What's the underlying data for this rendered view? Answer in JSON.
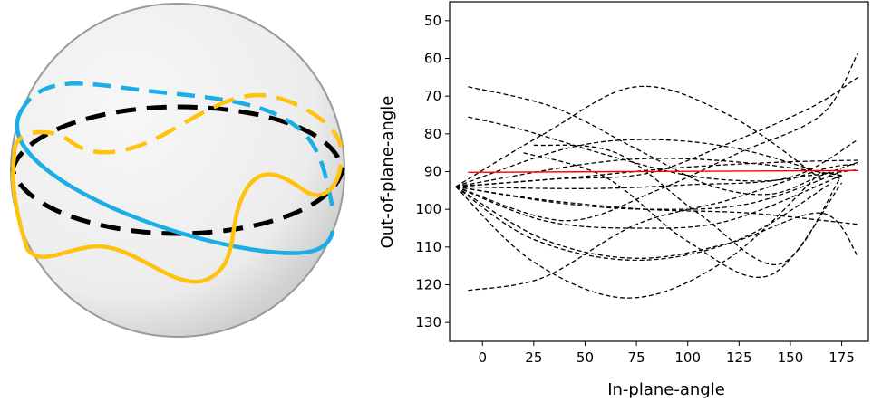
{
  "chart_data": [
    {
      "type": "sphere-illustration",
      "curves": [
        {
          "color": "#000000",
          "style": "dashed"
        },
        {
          "color": "#1aade6",
          "style": "solid/dashed"
        },
        {
          "color": "#ffc20e",
          "style": "solid/dashed"
        }
      ]
    },
    {
      "type": "line",
      "xlabel": "In-plane-angle",
      "ylabel": "Out-of-plane-angle",
      "xlim": [
        -16,
        188
      ],
      "ylim": [
        135,
        45
      ],
      "y_inverted": true,
      "xticks": [
        0,
        25,
        50,
        75,
        100,
        125,
        150,
        175
      ],
      "yticks": [
        50,
        60,
        70,
        80,
        90,
        100,
        110,
        120,
        130
      ],
      "grid": false,
      "reference_line": {
        "color": "#ff0000",
        "points": [
          [
            -7,
            90.2
          ],
          [
            183,
            89.7
          ]
        ]
      },
      "series_color": "#000000",
      "series_style": "dashed",
      "series": [
        {
          "x": [
            -7,
            35,
            75,
            110,
            140,
            165,
            183
          ],
          "y": [
            67.5,
            73,
            84,
            93.5,
            96,
            91,
            87.5
          ]
        },
        {
          "x": [
            -7,
            20,
            60,
            100,
            135,
            160,
            183
          ],
          "y": [
            75.5,
            79,
            85.5,
            91,
            92.5,
            91,
            89.5
          ]
        },
        {
          "x": [
            -13,
            30,
            75,
            120,
            165
          ],
          "y": [
            94,
            80,
            67.5,
            75,
            92
          ]
        },
        {
          "x": [
            -13,
            40,
            80,
            125,
            175
          ],
          "y": [
            94,
            84,
            81.5,
            84,
            92
          ]
        },
        {
          "x": [
            -13,
            50,
            90,
            135,
            175
          ],
          "y": [
            94,
            88,
            86.5,
            88,
            91
          ]
        },
        {
          "x": [
            -13,
            40,
            85,
            130,
            175
          ],
          "y": [
            94,
            98.5,
            100,
            98.5,
            90
          ]
        },
        {
          "x": [
            -13,
            30,
            75,
            120,
            175
          ],
          "y": [
            94,
            103,
            105,
            103,
            91
          ]
        },
        {
          "x": [
            -13,
            25,
            75,
            125,
            170
          ],
          "y": [
            94,
            108,
            113.5,
            108,
            93
          ]
        },
        {
          "x": [
            -13,
            25,
            72,
            120,
            165
          ],
          "y": [
            94,
            114,
            123.5,
            113,
            90
          ]
        },
        {
          "x": [
            -7,
            30,
            75,
            120,
            165,
            183
          ],
          "y": [
            121.5,
            118,
            104,
            97.5,
            89.5,
            88
          ]
        },
        {
          "x": [
            -13,
            40,
            85,
            125,
            165,
            183
          ],
          "y": [
            94,
            103,
            95,
            85,
            75,
            58.5
          ]
        },
        {
          "x": [
            -13,
            35,
            80,
            120,
            160,
            183
          ],
          "y": [
            94,
            92,
            90.5,
            82.5,
            73,
            65
          ]
        },
        {
          "x": [
            -13,
            50,
            100,
            150,
            183
          ],
          "y": [
            94,
            94.5,
            93.5,
            91.5,
            81.5
          ]
        },
        {
          "x": [
            -13,
            45,
            95,
            145,
            183
          ],
          "y": [
            94,
            91.5,
            89,
            87.5,
            87
          ]
        },
        {
          "x": [
            -13,
            30,
            80,
            130,
            183
          ],
          "y": [
            94,
            97.5,
            100,
            101,
            104
          ]
        },
        {
          "x": [
            -13,
            30,
            75,
            120,
            165,
            183
          ],
          "y": [
            94,
            108,
            113,
            109,
            101,
            112.5
          ]
        },
        {
          "x": [
            20,
            60,
            100,
            140,
            175
          ],
          "y": [
            85,
            91.5,
            108.5,
            117.5,
            93
          ]
        },
        {
          "x": [
            25,
            65,
            105,
            145,
            175
          ],
          "y": [
            83,
            85,
            101,
            114.5,
            91
          ]
        }
      ]
    }
  ]
}
